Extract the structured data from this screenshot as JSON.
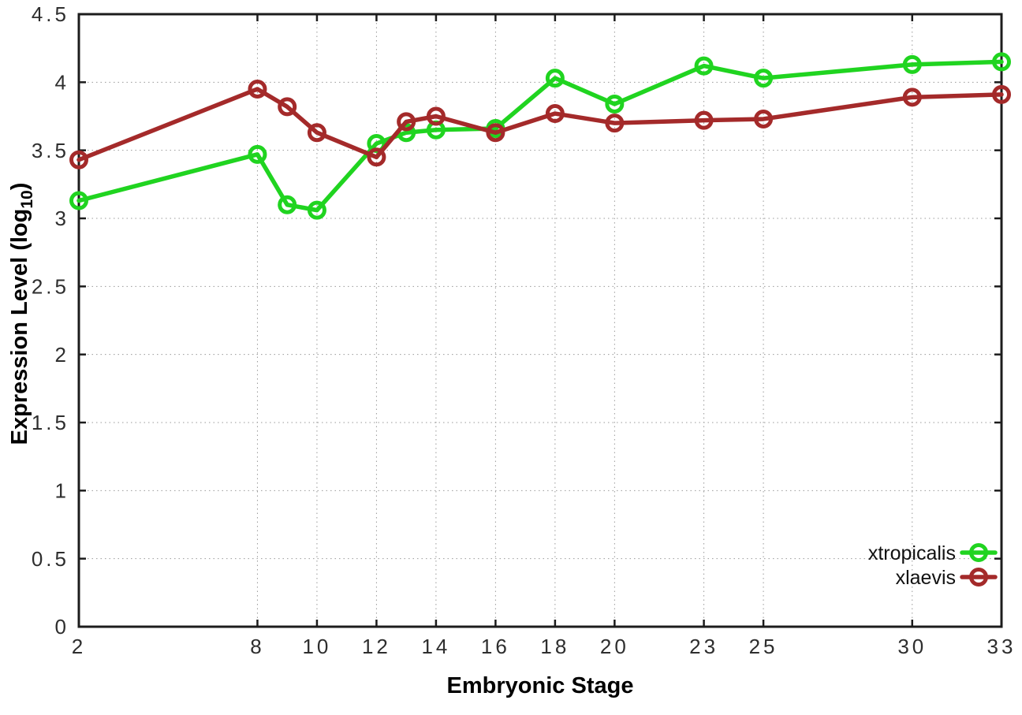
{
  "figure": {
    "background": "#ffffff",
    "x_axis_title": "Embryonic Stage",
    "y_axis_title_prefix": "Expression Level (log",
    "y_axis_title_sub": "10",
    "y_axis_title_suffix": ")"
  },
  "chart_data": {
    "type": "line",
    "xlabel": "Embryonic Stage",
    "ylabel": "Expression Level (log10)",
    "xlim": [
      2,
      33
    ],
    "ylim": [
      0,
      4.5
    ],
    "grid": true,
    "legend_position": "bottom-right",
    "x_ticks": [
      2,
      8,
      10,
      12,
      14,
      16,
      18,
      20,
      23,
      25,
      30,
      33
    ],
    "x_tick_labels": [
      "2",
      "8",
      "10",
      "12",
      "14",
      "16",
      "18",
      "20",
      "23",
      "25",
      "30",
      "33"
    ],
    "y_ticks": [
      0,
      0.5,
      1,
      1.5,
      2,
      2.5,
      3,
      3.5,
      4,
      4.5
    ],
    "y_tick_labels": [
      "0",
      "0.5",
      "1",
      "1.5",
      "2",
      "2.5",
      "3",
      "3.5",
      "4",
      "4.5"
    ],
    "x": [
      2,
      8,
      9,
      10,
      12,
      13,
      14,
      16,
      18,
      20,
      23,
      25,
      30,
      33
    ],
    "series": [
      {
        "name": "xtropicalis",
        "color": "#20d420",
        "values": [
          3.13,
          3.47,
          3.1,
          3.06,
          3.55,
          3.63,
          3.65,
          3.66,
          4.03,
          3.84,
          4.12,
          4.03,
          4.13,
          4.15
        ]
      },
      {
        "name": "xlaevis",
        "color": "#a42a2a",
        "values": [
          3.43,
          3.95,
          3.82,
          3.63,
          3.45,
          3.71,
          3.75,
          3.63,
          3.77,
          3.7,
          3.72,
          3.73,
          3.89,
          3.91
        ]
      }
    ]
  },
  "style": {
    "axis_color": "#1c1c1c",
    "grid_color": "#999999",
    "tick_label_color": "#2e2e2e",
    "legend_text_color": "#111111"
  }
}
